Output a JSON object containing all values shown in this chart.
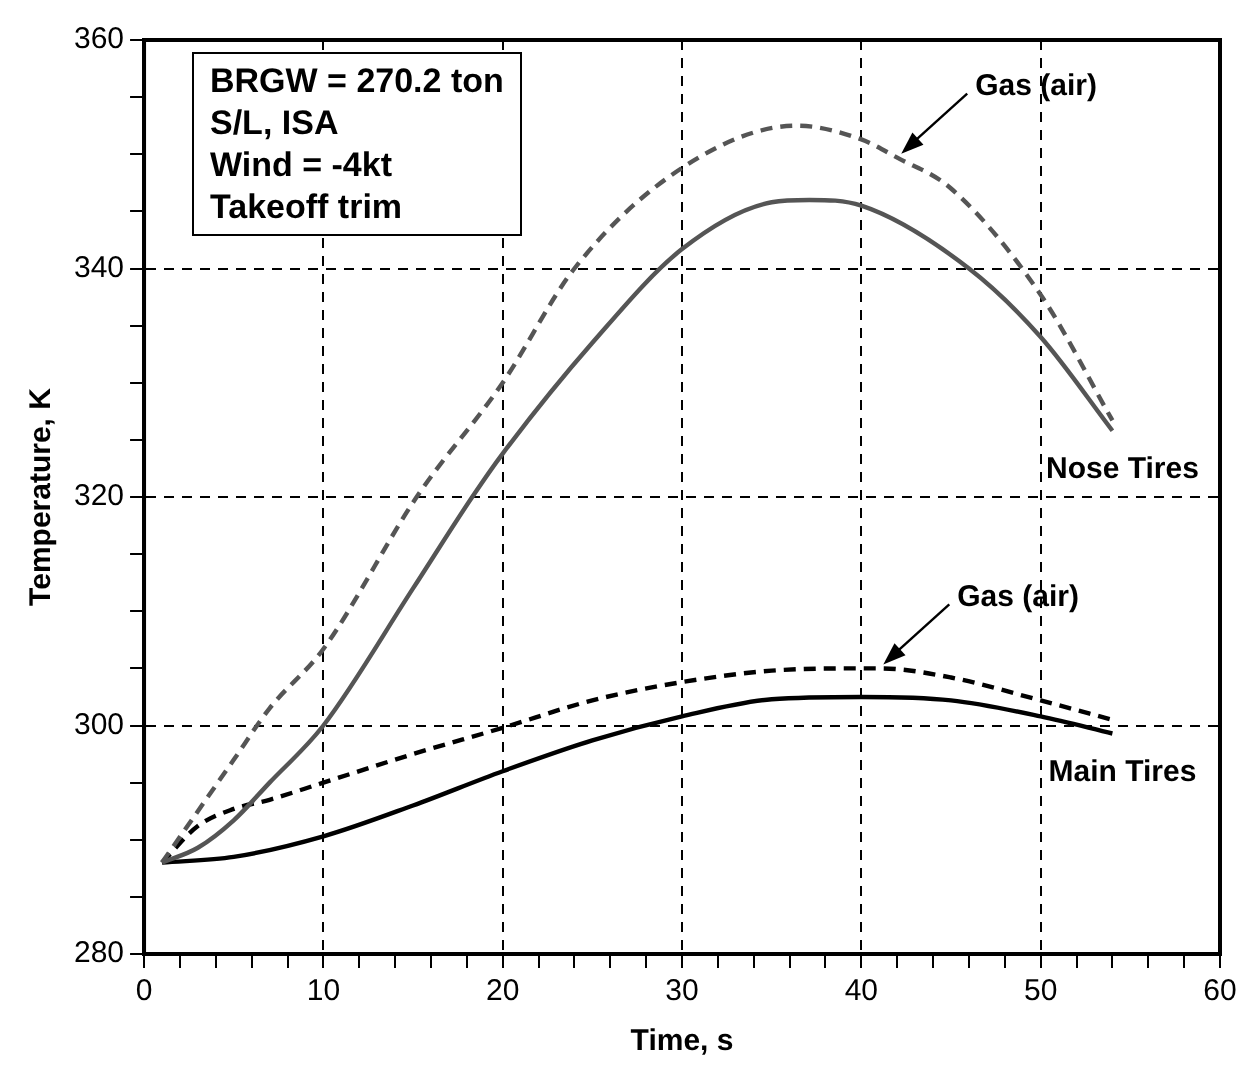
{
  "chart_data": {
    "type": "line",
    "xlabel": "Time, s",
    "ylabel": "Temperature, K",
    "xlim": [
      0,
      60
    ],
    "xticks": [
      0,
      {
        "value": 2,
        "label": null
      },
      {
        "value": 4,
        "label": null
      },
      {
        "value": 6,
        "label": null
      },
      {
        "value": 8,
        "label": null
      },
      10,
      {
        "value": 12,
        "label": null
      },
      {
        "value": 14,
        "label": null
      },
      {
        "value": 16,
        "label": null
      },
      {
        "value": 18,
        "label": null
      },
      20,
      {
        "value": 22,
        "label": null
      },
      {
        "value": 24,
        "label": null
      },
      {
        "value": 26,
        "label": null
      },
      {
        "value": 28,
        "label": null
      },
      30,
      {
        "value": 32,
        "label": null
      },
      {
        "value": 34,
        "label": null
      },
      {
        "value": 36,
        "label": null
      },
      {
        "value": 38,
        "label": null
      },
      40,
      {
        "value": 42,
        "label": null
      },
      {
        "value": 44,
        "label": null
      },
      {
        "value": 46,
        "label": null
      },
      {
        "value": 48,
        "label": null
      },
      50,
      {
        "value": 52,
        "label": null
      },
      {
        "value": 54,
        "label": null
      },
      {
        "value": 56,
        "label": null
      },
      {
        "value": 58,
        "label": null
      },
      60
    ],
    "ylim": [
      280,
      360
    ],
    "yticks": [
      280,
      {
        "value": 285,
        "label": null
      },
      {
        "value": 290,
        "label": null
      },
      {
        "value": 295,
        "label": null
      },
      300,
      {
        "value": 305,
        "label": null
      },
      {
        "value": 310,
        "label": null
      },
      {
        "value": 315,
        "label": null
      },
      320,
      {
        "value": 325,
        "label": null
      },
      {
        "value": 330,
        "label": null
      },
      {
        "value": 335,
        "label": null
      },
      340,
      {
        "value": 345,
        "label": null
      },
      {
        "value": 350,
        "label": null
      },
      {
        "value": 355,
        "label": null
      },
      360
    ],
    "grid": true,
    "marker": "none",
    "legend": false,
    "annotations": [
      "BRGW = 270.2 ton",
      "S/L, ISA",
      "Wind = -4kt",
      "Takeoff trim"
    ],
    "series": [
      {
        "name": "Gas (air)",
        "color": "#555555",
        "line_style": "dashed",
        "x": [
          1,
          3,
          5,
          7,
          10,
          15.2,
          20,
          24,
          30,
          36.4,
          40,
          42,
          45,
          50,
          54
        ],
        "values": [
          288,
          292.5,
          297,
          301.5,
          306.7,
          320,
          330,
          340,
          348.8,
          352.5,
          351.3,
          349.7,
          347,
          337.7,
          326.7
        ]
      },
      {
        "name": "Nose Tires",
        "color": "#555555",
        "line_style": "solid",
        "x": [
          1,
          3,
          5,
          7,
          10,
          15,
          18.3,
          20,
          25,
          30,
          35,
          37.1,
          40,
          46,
          50,
          54
        ],
        "values": [
          288,
          289.3,
          291.7,
          295,
          300,
          312,
          320,
          323.8,
          333.5,
          341.7,
          345.8,
          346,
          345.5,
          340,
          334,
          325.8
        ]
      },
      {
        "name": "Gas (air)",
        "color": "#000000",
        "line_style": "dashed",
        "x": [
          1,
          3,
          5,
          7,
          10,
          15,
          20,
          25,
          30,
          35,
          40,
          41,
          45,
          50,
          54
        ],
        "values": [
          288,
          291.2,
          292.7,
          293.5,
          295,
          297.5,
          299.8,
          302.2,
          303.8,
          304.8,
          305,
          305,
          304.2,
          302.2,
          300.5
        ]
      },
      {
        "name": "Main Tires",
        "color": "#000000",
        "line_style": "solid",
        "x": [
          1,
          5,
          10,
          15,
          20,
          25,
          30,
          35,
          40,
          45,
          50,
          54
        ],
        "values": [
          288,
          288.5,
          290.3,
          293,
          296,
          298.7,
          300.8,
          302.3,
          302.5,
          302.2,
          300.8,
          299.3
        ]
      }
    ]
  }
}
